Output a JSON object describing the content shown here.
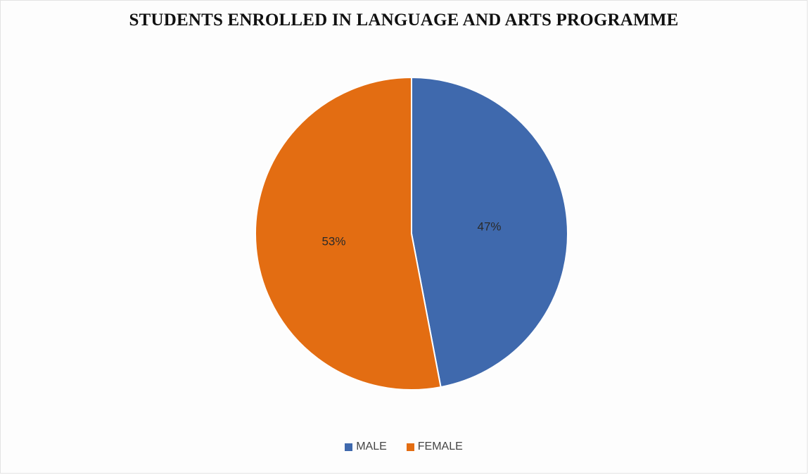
{
  "chart_data": {
    "type": "pie",
    "title": "STUDENTS ENROLLED IN LANGUAGE AND ARTS PROGRAMME",
    "categories": [
      "MALE",
      "FEMALE"
    ],
    "values": [
      47,
      53
    ],
    "labels": [
      "47%",
      "53%"
    ],
    "colors": [
      "#3f69ad",
      "#e36d12"
    ],
    "legend_position": "bottom",
    "start_angle": "12 o'clock",
    "direction": "clockwise"
  }
}
